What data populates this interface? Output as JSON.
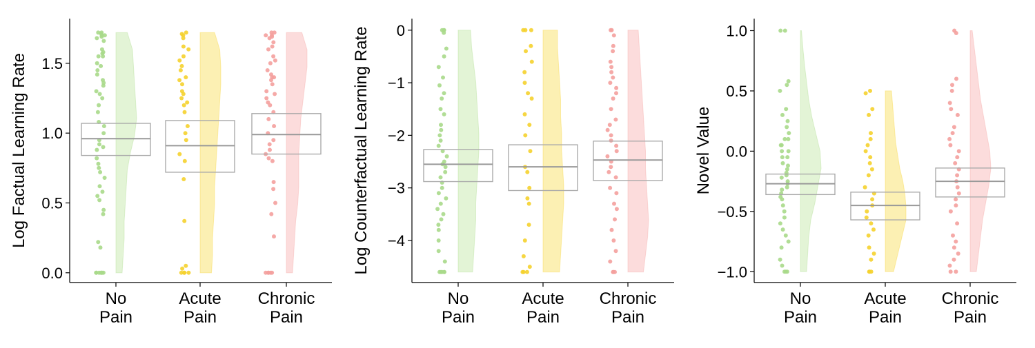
{
  "chart_data": [
    {
      "type": "raincloud",
      "ylabel": "Log Factual Learning Rate",
      "ylim": [
        -0.07,
        1.82
      ],
      "yticks": [
        0.0,
        0.5,
        1.0,
        1.5
      ],
      "ytick_labels": [
        "0.0",
        "0.5",
        "1.0",
        "1.5"
      ],
      "categories": [
        {
          "line1": "No",
          "line2": "Pain",
          "color": "#a8d98a",
          "fill": "#e3f4d6",
          "box": {
            "q1": 0.84,
            "median": 0.96,
            "q3": 1.07
          },
          "violin": {
            "min": 0.0,
            "max": 1.72,
            "widths": [
              0.3,
              0.35,
              0.4,
              0.4,
              0.45,
              0.5,
              0.55,
              0.7,
              0.9,
              1.0,
              0.95,
              0.9,
              0.85,
              0.8,
              0.55
            ]
          },
          "points": [
            1.72,
            1.72,
            1.71,
            1.7,
            1.7,
            1.69,
            1.68,
            1.66,
            1.6,
            1.58,
            1.57,
            1.55,
            1.55,
            1.5,
            1.48,
            1.45,
            1.42,
            1.38,
            1.36,
            1.34,
            1.3,
            1.28,
            1.25,
            1.2,
            1.15,
            1.08,
            1.05,
            1.0,
            0.95,
            0.92,
            0.9,
            0.88,
            0.82,
            0.78,
            0.75,
            0.72,
            0.68,
            0.62,
            0.58,
            0.55,
            0.52,
            0.45,
            0.42,
            0.22,
            0.18,
            0.0,
            0.0,
            0.0,
            0.0,
            0.0,
            0.0,
            0.0
          ]
        },
        {
          "line1": "Acute",
          "line2": "Pain",
          "color": "#f5d22e",
          "fill": "#fcf0b3",
          "box": {
            "q1": 0.72,
            "median": 0.91,
            "q3": 1.09
          },
          "violin": {
            "min": 0.0,
            "max": 1.72,
            "widths": [
              0.55,
              0.6,
              0.6,
              0.65,
              0.7,
              0.7,
              0.75,
              0.8,
              0.85,
              0.9,
              0.95,
              1.0,
              1.0,
              0.95,
              0.7
            ]
          },
          "points": [
            1.72,
            1.71,
            1.7,
            1.68,
            1.62,
            1.6,
            1.55,
            1.52,
            1.48,
            1.45,
            1.4,
            1.38,
            1.35,
            1.3,
            1.28,
            1.25,
            1.22,
            1.2,
            1.15,
            1.05,
            1.0,
            0.95,
            0.85,
            0.8,
            0.67,
            0.37,
            0.05,
            0.03,
            0.0,
            0.0,
            0.0,
            0.0
          ]
        },
        {
          "line1": "Chronic",
          "line2": "Pain",
          "color": "#f4a09d",
          "fill": "#fcdcdc",
          "box": {
            "q1": 0.85,
            "median": 0.99,
            "q3": 1.14
          },
          "violin": {
            "min": 0.0,
            "max": 1.72,
            "widths": [
              0.3,
              0.35,
              0.4,
              0.45,
              0.55,
              0.6,
              0.6,
              0.6,
              0.65,
              0.7,
              0.8,
              0.9,
              1.0,
              1.0,
              0.75
            ]
          },
          "points": [
            1.72,
            1.72,
            1.7,
            1.7,
            1.69,
            1.68,
            1.65,
            1.62,
            1.6,
            1.55,
            1.52,
            1.5,
            1.45,
            1.42,
            1.4,
            1.4,
            1.38,
            1.35,
            1.3,
            1.28,
            1.25,
            1.22,
            1.2,
            1.15,
            1.1,
            1.05,
            1.0,
            0.95,
            0.92,
            0.88,
            0.85,
            0.82,
            0.8,
            0.65,
            0.6,
            0.5,
            0.42,
            0.26,
            0.0,
            0.0,
            0.0,
            0.0,
            0.0
          ]
        }
      ]
    },
    {
      "type": "raincloud",
      "ylabel": "Log Counterfactual Learning Rate",
      "ylim": [
        -4.8,
        0.22
      ],
      "yticks": [
        -4,
        -3,
        -2,
        -1,
        0
      ],
      "ytick_labels": [
        "−4",
        "−3",
        "−2",
        "−1",
        "0"
      ],
      "categories": [
        {
          "line1": "No",
          "line2": "Pain",
          "color": "#a8d98a",
          "fill": "#e3f4d6",
          "box": {
            "q1": -2.88,
            "median": -2.55,
            "q3": -2.27
          },
          "violin": {
            "min": -4.6,
            "max": 0.0,
            "widths": [
              0.7,
              0.75,
              0.8,
              0.85,
              0.85,
              0.9,
              0.95,
              1.0,
              1.0,
              0.95,
              0.9,
              0.85,
              0.75,
              0.65,
              0.6
            ]
          },
          "points": [
            0.0,
            0.0,
            0.0,
            -0.05,
            -0.35,
            -0.5,
            -0.7,
            -0.9,
            -1.05,
            -1.2,
            -1.3,
            -1.5,
            -1.6,
            -1.8,
            -1.9,
            -2.0,
            -2.1,
            -2.2,
            -2.3,
            -2.4,
            -2.5,
            -2.55,
            -2.6,
            -2.7,
            -2.8,
            -2.9,
            -3.0,
            -3.1,
            -3.2,
            -3.3,
            -3.4,
            -3.5,
            -3.6,
            -3.7,
            -3.8,
            -4.0,
            -4.2,
            -4.4,
            -4.6,
            -4.6,
            -4.6,
            -4.6,
            -4.6
          ]
        },
        {
          "line1": "Acute",
          "line2": "Pain",
          "color": "#f5d22e",
          "fill": "#fcf0b3",
          "box": {
            "q1": -3.05,
            "median": -2.6,
            "q3": -2.18
          },
          "violin": {
            "min": -4.6,
            "max": 0.0,
            "widths": [
              0.8,
              0.85,
              0.9,
              0.95,
              1.0,
              1.0,
              0.95,
              0.9,
              0.9,
              0.85,
              0.85,
              0.8,
              0.75,
              0.7,
              0.7
            ]
          },
          "points": [
            0.0,
            0.0,
            0.0,
            -0.3,
            -0.4,
            -0.6,
            -0.8,
            -1.0,
            -1.2,
            -1.3,
            -1.6,
            -1.8,
            -2.0,
            -2.3,
            -2.6,
            -2.7,
            -3.0,
            -3.2,
            -3.3,
            -3.7,
            -4.0,
            -4.3,
            -4.5,
            -4.6,
            -4.6,
            -4.6
          ]
        },
        {
          "line1": "Chronic",
          "line2": "Pain",
          "color": "#f4a09d",
          "fill": "#fcdcdc",
          "box": {
            "q1": -2.86,
            "median": -2.47,
            "q3": -2.11
          },
          "violin": {
            "min": -4.6,
            "max": 0.0,
            "widths": [
              0.75,
              0.85,
              0.95,
              1.0,
              0.95,
              0.9,
              0.85,
              0.85,
              0.8,
              0.75,
              0.7,
              0.65,
              0.6,
              0.55,
              0.5
            ]
          },
          "points": [
            0.0,
            0.0,
            -0.1,
            -0.3,
            -0.4,
            -0.6,
            -0.7,
            -0.8,
            -0.9,
            -1.0,
            -1.1,
            -1.2,
            -1.3,
            -1.5,
            -1.7,
            -1.8,
            -1.9,
            -2.0,
            -2.1,
            -2.2,
            -2.3,
            -2.4,
            -2.5,
            -2.6,
            -2.7,
            -2.8,
            -3.0,
            -3.1,
            -3.3,
            -3.4,
            -3.6,
            -3.8,
            -4.0,
            -4.2,
            -4.4,
            -4.6,
            -4.6,
            -4.6
          ]
        }
      ]
    },
    {
      "type": "raincloud",
      "ylabel": "Novel Value",
      "ylim": [
        -1.09,
        1.1
      ],
      "yticks": [
        -1.0,
        -0.5,
        0.0,
        0.5,
        1.0
      ],
      "ytick_labels": [
        "−1.0",
        "−0.5",
        "0.0",
        "0.5",
        "1.0"
      ],
      "categories": [
        {
          "line1": "No",
          "line2": "Pain",
          "color": "#a8d98a",
          "fill": "#e3f4d6",
          "box": {
            "q1": -0.36,
            "median": -0.27,
            "q3": -0.19
          },
          "violin": {
            "min": -1.0,
            "max": 1.0,
            "widths": [
              0.3,
              0.35,
              0.4,
              0.5,
              0.7,
              0.85,
              1.0,
              0.95,
              0.75,
              0.55,
              0.4,
              0.3,
              0.2,
              0.12,
              0.05
            ]
          },
          "points": [
            1.0,
            1.0,
            0.58,
            0.55,
            0.5,
            0.35,
            0.3,
            0.25,
            0.2,
            0.15,
            0.1,
            0.1,
            0.05,
            0.05,
            0.0,
            0.0,
            -0.05,
            -0.05,
            -0.1,
            -0.12,
            -0.15,
            -0.18,
            -0.2,
            -0.22,
            -0.25,
            -0.27,
            -0.3,
            -0.32,
            -0.35,
            -0.38,
            -0.4,
            -0.45,
            -0.5,
            -0.55,
            -0.6,
            -0.65,
            -0.7,
            -0.75,
            -0.8,
            -0.9,
            -0.95,
            -1.0,
            -1.0,
            -1.0
          ]
        },
        {
          "line1": "Acute",
          "line2": "Pain",
          "color": "#f5d22e",
          "fill": "#fcf0b3",
          "box": {
            "q1": -0.57,
            "median": -0.45,
            "q3": -0.34
          },
          "violin": {
            "min": -1.0,
            "max": 0.5,
            "widths": [
              0.4,
              0.55,
              0.7,
              0.85,
              1.0,
              1.0,
              0.95,
              0.85,
              0.7,
              0.6,
              0.5,
              0.45,
              0.4,
              0.35,
              0.3
            ]
          },
          "points": [
            0.5,
            0.48,
            0.35,
            0.3,
            0.15,
            0.1,
            0.05,
            0.0,
            -0.05,
            -0.1,
            -0.15,
            -0.2,
            -0.3,
            -0.35,
            -0.4,
            -0.45,
            -0.5,
            -0.55,
            -0.6,
            -0.65,
            -0.7,
            -0.8,
            -0.85,
            -0.9,
            -1.0,
            -1.0,
            -1.0
          ]
        },
        {
          "line1": "Chronic",
          "line2": "Pain",
          "color": "#f4a09d",
          "fill": "#fcdcdc",
          "box": {
            "q1": -0.38,
            "median": -0.25,
            "q3": -0.14
          },
          "violin": {
            "min": -1.0,
            "max": 1.0,
            "widths": [
              0.3,
              0.4,
              0.5,
              0.6,
              0.75,
              0.9,
              1.0,
              0.95,
              0.8,
              0.65,
              0.5,
              0.4,
              0.3,
              0.2,
              0.1
            ]
          },
          "points": [
            1.0,
            0.98,
            0.6,
            0.55,
            0.5,
            0.4,
            0.35,
            0.3,
            0.2,
            0.15,
            0.1,
            0.05,
            0.0,
            -0.05,
            -0.1,
            -0.15,
            -0.2,
            -0.25,
            -0.3,
            -0.35,
            -0.4,
            -0.45,
            -0.5,
            -0.6,
            -0.7,
            -0.75,
            -0.8,
            -0.85,
            -0.9,
            -0.95,
            -1.0,
            -1.0
          ]
        }
      ]
    }
  ]
}
